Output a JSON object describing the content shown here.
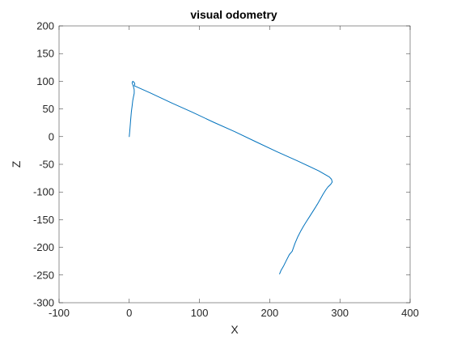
{
  "chart_data": {
    "type": "line",
    "title": "visual odometry",
    "xlabel": "X",
    "ylabel": "Z",
    "xlim": [
      -100,
      400
    ],
    "ylim": [
      -300,
      200
    ],
    "xticks": [
      -100,
      0,
      100,
      200,
      300,
      400
    ],
    "yticks": [
      200,
      150,
      100,
      50,
      0,
      -50,
      -100,
      -150,
      -200,
      -250,
      -300
    ],
    "grid": false,
    "line_color": "#0072bd",
    "series": [
      {
        "x": [
          0,
          1,
          2,
          3,
          4,
          5,
          6,
          7,
          7,
          6,
          5,
          4,
          5,
          7,
          8,
          7,
          30,
          60,
          90,
          120,
          150,
          180,
          210,
          240,
          270,
          285,
          288,
          289,
          287,
          283,
          280,
          276,
          272,
          268,
          264,
          260,
          256,
          252,
          248,
          244,
          240,
          236,
          232,
          228,
          224,
          220,
          216,
          214
        ],
        "y": [
          0,
          15,
          30,
          45,
          55,
          65,
          72,
          78,
          85,
          90,
          94,
          97,
          100,
          98,
          95,
          92,
          79,
          61,
          44,
          26,
          9,
          -9,
          -27,
          -44,
          -62,
          -73,
          -77,
          -82,
          -86,
          -91,
          -96,
          -104,
          -113,
          -122,
          -130,
          -138,
          -146,
          -154,
          -162,
          -171,
          -181,
          -193,
          -207,
          -213,
          -223,
          -233,
          -242,
          -248
        ]
      }
    ]
  }
}
